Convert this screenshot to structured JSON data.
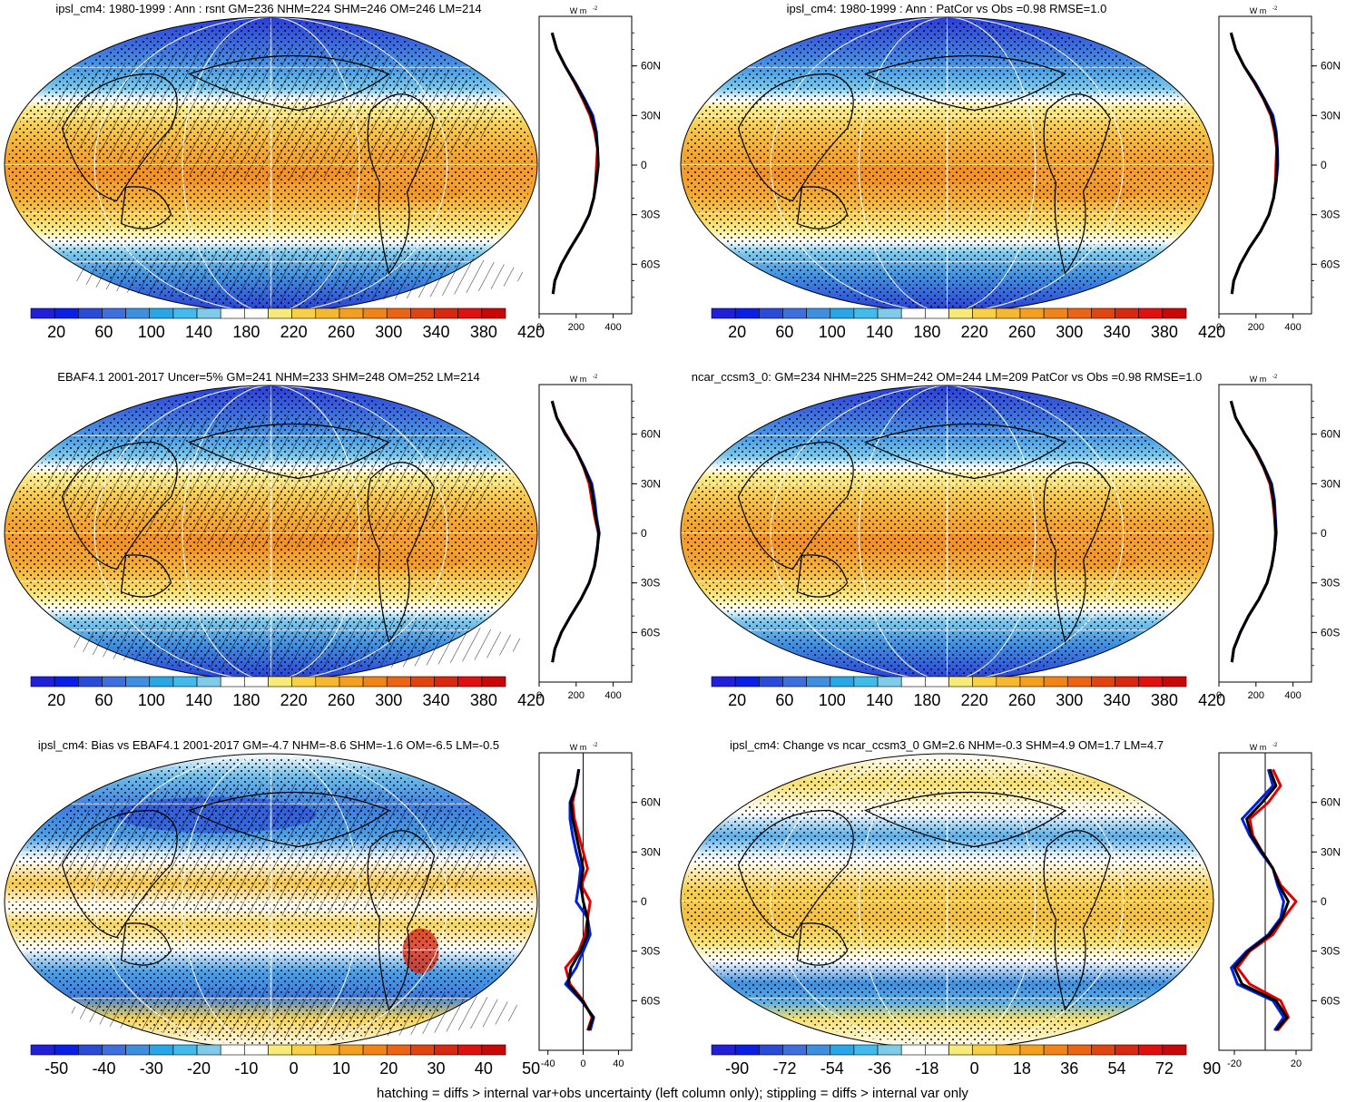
{
  "figure": {
    "footer": "hatching = diffs > internal var+obs uncertainty (left column only); stippling = diffs > internal var only"
  },
  "colors": {
    "obs_line": "#e00000",
    "model_line": "#0020e0",
    "mean_line": "#000000",
    "full_scale": [
      "#2020d8",
      "#0a1ee6",
      "#2a4ad8",
      "#3f6fde",
      "#3f8fe0",
      "#28a6e6",
      "#40bbec",
      "#80cce8",
      "#ffffff",
      "#ffffff",
      "#f6eb78",
      "#f8d048",
      "#f6b830",
      "#f3a020",
      "#f08418",
      "#ea6414",
      "#e24410",
      "#d82810",
      "#e01010",
      "#c80808"
    ],
    "diff_scale": [
      "#2020d8",
      "#0a1ee6",
      "#2a4ad8",
      "#3f6fde",
      "#3f8fe0",
      "#28a6e6",
      "#40bbec",
      "#80cce8",
      "#ffffff",
      "#ffffff",
      "#f6eb78",
      "#f8d048",
      "#f6b830",
      "#f3a020",
      "#f08418",
      "#ea6414",
      "#e24410",
      "#d82810",
      "#e01010",
      "#c80808"
    ]
  },
  "chart_data": [
    {
      "type": "heatmap",
      "panel": "top-left",
      "title": "ipsl_cm4: 1980-1999 : Ann : rsnt GM=236 NHM=224 SHM=246 OM=246 LM=214",
      "colorbar_labels": [
        "20",
        "60",
        "100",
        "140",
        "180",
        "220",
        "260",
        "300",
        "340",
        "380",
        "420"
      ],
      "field": "full",
      "hatching": true,
      "zonal_profile": {
        "unit_label": "W m",
        "unit_exp": "-2",
        "xticks": [
          "0",
          "200",
          "400"
        ],
        "xlim": [
          0,
          500
        ],
        "lat_ticks": [
          "60N",
          "30N",
          "0",
          "30S",
          "60S"
        ],
        "lat": [
          80,
          70,
          60,
          50,
          40,
          30,
          20,
          10,
          0,
          -10,
          -20,
          -30,
          -40,
          -50,
          -60,
          -70,
          -78
        ],
        "series": [
          {
            "color": "red",
            "values": [
              70,
              95,
              140,
              190,
              235,
              275,
              300,
              315,
              310,
              305,
              295,
              270,
              225,
              170,
              120,
              85,
              75
            ]
          },
          {
            "color": "blue",
            "values": [
              70,
              95,
              140,
              195,
              245,
              290,
              310,
              315,
              320,
              310,
              295,
              270,
              225,
              170,
              120,
              85,
              75
            ]
          },
          {
            "color": "black",
            "values": [
              70,
              95,
              140,
              192,
              240,
              282,
              305,
              316,
              318,
              308,
              295,
              270,
              225,
              170,
              120,
              85,
              75
            ]
          }
        ]
      }
    },
    {
      "type": "heatmap",
      "panel": "top-right",
      "title": "ipsl_cm4: 1980-1999 : Ann : PatCor vs Obs =0.98 RMSE=1.0",
      "colorbar_labels": [
        "20",
        "60",
        "100",
        "140",
        "180",
        "220",
        "260",
        "300",
        "340",
        "380",
        "420"
      ],
      "field": "full",
      "hatching": false,
      "zonal_profile": {
        "unit_label": "W m",
        "unit_exp": "-2",
        "xticks": [
          "0",
          "200",
          "400"
        ],
        "xlim": [
          0,
          500
        ],
        "lat_ticks": [
          "60N",
          "30N",
          "0",
          "30S",
          "60S"
        ],
        "lat": [
          80,
          70,
          60,
          50,
          40,
          30,
          20,
          10,
          0,
          -10,
          -20,
          -30,
          -40,
          -50,
          -60,
          -70,
          -78
        ],
        "series": [
          {
            "color": "red",
            "values": [
              65,
              90,
              135,
              190,
              240,
              280,
              300,
              312,
              308,
              305,
              295,
              270,
              225,
              165,
              115,
              80,
              70
            ]
          },
          {
            "color": "blue",
            "values": [
              65,
              90,
              135,
              195,
              245,
              292,
              310,
              316,
              318,
              310,
              295,
              270,
              225,
              165,
              115,
              80,
              70
            ]
          },
          {
            "color": "black",
            "values": [
              65,
              90,
              135,
              192,
              242,
              285,
              305,
              314,
              314,
              308,
              295,
              270,
              225,
              165,
              115,
              80,
              70
            ]
          }
        ]
      }
    },
    {
      "type": "heatmap",
      "panel": "middle-left",
      "title": "EBAF4.1 2001-2017 Uncer=5% GM=241 NHM=233 SHM=248 OM=252 LM=214",
      "colorbar_labels": [
        "20",
        "60",
        "100",
        "140",
        "180",
        "220",
        "260",
        "300",
        "340",
        "380",
        "420"
      ],
      "field": "full",
      "hatching": true,
      "zonal_profile": {
        "unit_label": "W m",
        "unit_exp": "-2",
        "xticks": [
          "0",
          "200",
          "400"
        ],
        "xlim": [
          0,
          500
        ],
        "lat_ticks": [
          "60N",
          "30N",
          "0",
          "30S",
          "60S"
        ],
        "lat": [
          80,
          70,
          60,
          50,
          40,
          30,
          20,
          10,
          0,
          -10,
          -20,
          -30,
          -40,
          -50,
          -60,
          -70,
          -78
        ],
        "series": [
          {
            "color": "red",
            "values": [
              70,
              95,
              145,
              200,
              240,
              270,
              285,
              300,
              320,
              315,
              300,
              270,
              225,
              170,
              120,
              85,
              72
            ]
          },
          {
            "color": "blue",
            "values": [
              70,
              95,
              140,
              200,
              245,
              285,
              300,
              310,
              325,
              312,
              298,
              270,
              225,
              170,
              120,
              85,
              72
            ]
          },
          {
            "color": "black",
            "values": [
              70,
              95,
              142,
              200,
              242,
              278,
              292,
              305,
              322,
              313,
              299,
              270,
              225,
              170,
              120,
              85,
              72
            ]
          }
        ]
      }
    },
    {
      "type": "heatmap",
      "panel": "middle-right",
      "title": "ncar_ccsm3_0: GM=234 NHM=225 SHM=242 OM=244 LM=209 PatCor vs Obs =0.98 RMSE=1.0",
      "colorbar_labels": [
        "20",
        "60",
        "100",
        "140",
        "180",
        "220",
        "260",
        "300",
        "340",
        "380",
        "420"
      ],
      "field": "full",
      "hatching": false,
      "zonal_profile": {
        "unit_label": "W m",
        "unit_exp": "-2",
        "xticks": [
          "0",
          "200",
          "400"
        ],
        "xlim": [
          0,
          500
        ],
        "lat_ticks": [
          "60N",
          "30N",
          "0",
          "30S",
          "60S"
        ],
        "lat": [
          80,
          70,
          60,
          50,
          40,
          30,
          20,
          10,
          0,
          -10,
          -20,
          -30,
          -40,
          -50,
          -60,
          -70,
          -78
        ],
        "series": [
          {
            "color": "red",
            "values": [
              65,
              90,
              140,
              195,
              240,
              275,
              290,
              300,
              305,
              300,
              285,
              260,
              215,
              160,
              115,
              80,
              70
            ]
          },
          {
            "color": "blue",
            "values": [
              65,
              90,
              140,
              200,
              245,
              285,
              300,
              305,
              310,
              300,
              285,
              260,
              215,
              160,
              115,
              80,
              70
            ]
          },
          {
            "color": "black",
            "values": [
              65,
              90,
              140,
              198,
              242,
              280,
              295,
              303,
              308,
              300,
              285,
              260,
              215,
              160,
              115,
              80,
              70
            ]
          }
        ]
      }
    },
    {
      "type": "heatmap",
      "panel": "bottom-left",
      "title": "ipsl_cm4: Bias vs EBAF4.1 2001-2017 GM=-4.7 NHM=-8.6 SHM=-1.6 OM=-6.5 LM=-0.5",
      "colorbar_labels": [
        "-50",
        "-40",
        "-30",
        "-20",
        "-10",
        "0",
        "10",
        "20",
        "30",
        "40",
        "50"
      ],
      "field": "bias",
      "hatching": true,
      "zonal_profile": {
        "unit_label": "W m",
        "unit_exp": "-2",
        "xticks": [
          "-40",
          "0",
          "40"
        ],
        "xlim": [
          -50,
          55
        ],
        "lat_ticks": [
          "60N",
          "30N",
          "0",
          "30S",
          "60S"
        ],
        "lat": [
          80,
          70,
          60,
          50,
          40,
          30,
          20,
          10,
          0,
          -10,
          -20,
          -30,
          -40,
          -50,
          -60,
          -70,
          -78
        ],
        "series": [
          {
            "color": "red",
            "values": [
              -5,
              -8,
              -12,
              -10,
              -5,
              0,
              5,
              -2,
              8,
              5,
              2,
              -5,
              -20,
              -15,
              0,
              10,
              5
            ]
          },
          {
            "color": "blue",
            "values": [
              -5,
              -8,
              -15,
              -15,
              -12,
              -8,
              -3,
              -5,
              -8,
              5,
              8,
              0,
              -8,
              -20,
              -2,
              12,
              8
            ]
          },
          {
            "color": "black",
            "values": [
              -5,
              -8,
              -14,
              -12,
              -8,
              -4,
              0,
              -3,
              0,
              5,
              5,
              -3,
              -14,
              -17,
              -1,
              11,
              6
            ]
          }
        ]
      }
    },
    {
      "type": "heatmap",
      "panel": "bottom-right",
      "title": "ipsl_cm4: Change vs ncar_ccsm3_0 GM=2.6 NHM=-0.3 SHM=4.9 OM=1.7 LM=4.7",
      "colorbar_labels": [
        "-90",
        "-72",
        "-54",
        "-36",
        "-18",
        "0",
        "18",
        "36",
        "54",
        "72",
        "90"
      ],
      "field": "change",
      "hatching": false,
      "zonal_profile": {
        "unit_label": "W m",
        "unit_exp": "-2",
        "xticks": [
          "-20",
          "20"
        ],
        "xlim": [
          -30,
          30
        ],
        "lat_ticks": [
          "60N",
          "30N",
          "0",
          "30S",
          "60S"
        ],
        "lat": [
          80,
          70,
          60,
          50,
          40,
          30,
          20,
          10,
          0,
          -10,
          -20,
          -30,
          -40,
          -50,
          -60,
          -70,
          -78
        ],
        "series": [
          {
            "color": "red",
            "values": [
              5,
              10,
              2,
              -10,
              -8,
              -2,
              5,
              10,
              20,
              12,
              5,
              -10,
              -18,
              -10,
              10,
              15,
              8
            ]
          },
          {
            "color": "blue",
            "values": [
              2,
              5,
              -5,
              -15,
              -10,
              -3,
              5,
              8,
              12,
              10,
              2,
              -12,
              -22,
              -18,
              5,
              12,
              6
            ]
          },
          {
            "color": "black",
            "values": [
              3,
              7,
              -2,
              -12,
              -9,
              -2,
              5,
              9,
              15,
              11,
              3,
              -11,
              -20,
              -15,
              7,
              14,
              7
            ]
          }
        ]
      }
    }
  ]
}
